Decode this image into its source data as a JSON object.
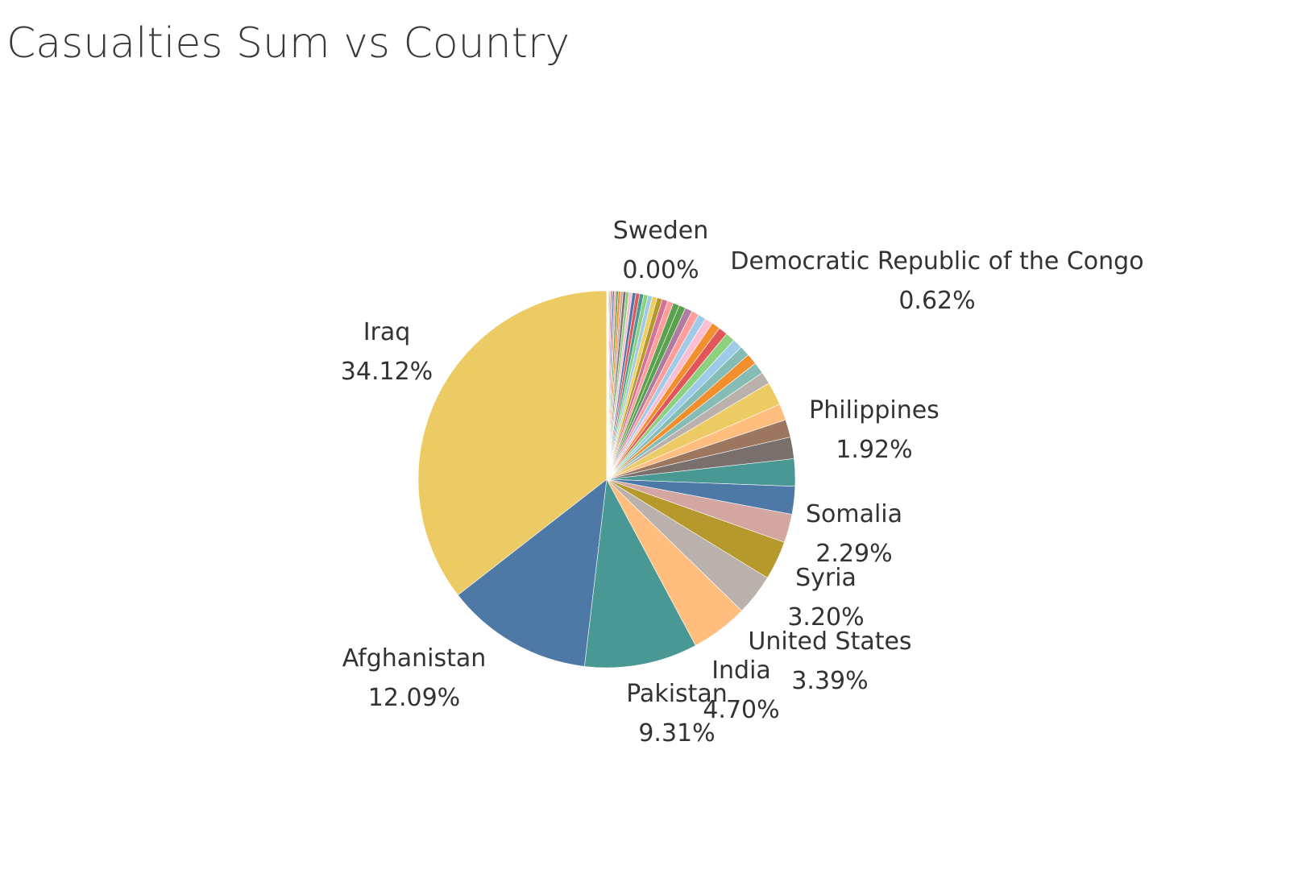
{
  "title": "Casualties Sum vs Country",
  "chart_data": {
    "type": "pie",
    "title": "Casualties Sum vs Country",
    "unit": "percent of total",
    "slices": [
      {
        "label": "Iraq",
        "value": 34.12,
        "color": "#EDCB64",
        "labeled": true
      },
      {
        "label": "Afghanistan",
        "value": 12.09,
        "color": "#4E79A7",
        "labeled": true
      },
      {
        "label": "Pakistan",
        "value": 9.31,
        "color": "#499894",
        "labeled": true
      },
      {
        "label": "India",
        "value": 4.7,
        "color": "#FFBE7D",
        "labeled": true
      },
      {
        "label": "United States",
        "value": 3.39,
        "color": "#BAB0AC",
        "labeled": true
      },
      {
        "label": "Syria",
        "value": 3.2,
        "color": "#B6992D",
        "labeled": true
      },
      {
        "label": "",
        "value": 2.35,
        "color": "#D4A6A1",
        "labeled": false
      },
      {
        "label": "Somalia",
        "value": 2.29,
        "color": "#4E79A7",
        "labeled": true
      },
      {
        "label": "",
        "value": 2.25,
        "color": "#499894",
        "labeled": false
      },
      {
        "label": "",
        "value": 1.78,
        "color": "#79706E",
        "labeled": false
      },
      {
        "label": "",
        "value": 1.45,
        "color": "#9D7660",
        "labeled": false
      },
      {
        "label": "",
        "value": 1.35,
        "color": "#FFBE7D",
        "labeled": false
      },
      {
        "label": "Philippines",
        "value": 1.92,
        "color": "#EDCB64",
        "labeled": true
      },
      {
        "label": "",
        "value": 1.0,
        "color": "#BAB0AC",
        "labeled": false
      },
      {
        "label": "",
        "value": 0.95,
        "color": "#86BCB6",
        "labeled": false
      },
      {
        "label": "",
        "value": 0.9,
        "color": "#F28E2B",
        "labeled": false
      },
      {
        "label": "",
        "value": 0.85,
        "color": "#86BCB6",
        "labeled": false
      },
      {
        "label": "",
        "value": 0.82,
        "color": "#A0CBE8",
        "labeled": false
      },
      {
        "label": "",
        "value": 0.78,
        "color": "#8CD17D",
        "labeled": false
      },
      {
        "label": "",
        "value": 0.74,
        "color": "#E15759",
        "labeled": false
      },
      {
        "label": "",
        "value": 0.7,
        "color": "#F28E2B",
        "labeled": false
      },
      {
        "label": "",
        "value": 0.66,
        "color": "#FABFD2",
        "labeled": false
      },
      {
        "label": "",
        "value": 0.64,
        "color": "#A0CBE8",
        "labeled": false
      },
      {
        "label": "Democratic Republic of the Congo",
        "value": 0.62,
        "color": "#FF9D9A",
        "labeled": true
      },
      {
        "label": "",
        "value": 0.58,
        "color": "#B07AA1",
        "labeled": false
      },
      {
        "label": "",
        "value": 0.55,
        "color": "#59A14F",
        "labeled": false
      },
      {
        "label": "",
        "value": 0.52,
        "color": "#59A14F",
        "labeled": false
      },
      {
        "label": "",
        "value": 0.49,
        "color": "#FF9D9A",
        "labeled": false
      },
      {
        "label": "",
        "value": 0.46,
        "color": "#D37295",
        "labeled": false
      },
      {
        "label": "",
        "value": 0.43,
        "color": "#B6992D",
        "labeled": false
      },
      {
        "label": "",
        "value": 0.4,
        "color": "#F1CE63",
        "labeled": false
      },
      {
        "label": "",
        "value": 0.37,
        "color": "#A0CBE8",
        "labeled": false
      },
      {
        "label": "",
        "value": 0.35,
        "color": "#8CD17D",
        "labeled": false
      },
      {
        "label": "",
        "value": 0.33,
        "color": "#499894",
        "labeled": false
      },
      {
        "label": "",
        "value": 0.31,
        "color": "#E15759",
        "labeled": false
      },
      {
        "label": "",
        "value": 0.29,
        "color": "#4E79A7",
        "labeled": false
      },
      {
        "label": "",
        "value": 0.27,
        "color": "#FABFD2",
        "labeled": false
      },
      {
        "label": "",
        "value": 0.25,
        "color": "#8CD17D",
        "labeled": false
      },
      {
        "label": "",
        "value": 0.23,
        "color": "#79706E",
        "labeled": false
      },
      {
        "label": "",
        "value": 0.21,
        "color": "#D4A6A1",
        "labeled": false
      },
      {
        "label": "",
        "value": 0.19,
        "color": "#F28E2B",
        "labeled": false
      },
      {
        "label": "",
        "value": 0.17,
        "color": "#59A14F",
        "labeled": false
      },
      {
        "label": "",
        "value": 0.15,
        "color": "#FF9D9A",
        "labeled": false
      },
      {
        "label": "",
        "value": 0.13,
        "color": "#4E79A7",
        "labeled": false
      },
      {
        "label": "",
        "value": 0.11,
        "color": "#B07AA1",
        "labeled": false
      },
      {
        "label": "",
        "value": 0.09,
        "color": "#E15759",
        "labeled": false
      },
      {
        "label": "",
        "value": 0.07,
        "color": "#9D7660",
        "labeled": false
      },
      {
        "label": "",
        "value": 0.06,
        "color": "#D37295",
        "labeled": false
      },
      {
        "label": "",
        "value": 0.05,
        "color": "#A0CBE8",
        "labeled": false
      },
      {
        "label": "",
        "value": 0.04,
        "color": "#BAB0AC",
        "labeled": false
      },
      {
        "label": "",
        "value": 0.03,
        "color": "#79706E",
        "labeled": false
      },
      {
        "label": "",
        "value": 0.02,
        "color": "#FF9D9A",
        "labeled": false
      },
      {
        "label": "Sweden",
        "value": 0.0,
        "color": "#BAB0AC",
        "labeled": true
      }
    ],
    "value_labels": [
      {
        "country": "Iraq",
        "text": "34.12%"
      },
      {
        "country": "Afghanistan",
        "text": "12.09%"
      },
      {
        "country": "Pakistan",
        "text": "9.31%"
      },
      {
        "country": "India",
        "text": "4.70%"
      },
      {
        "country": "United States",
        "text": "3.39%"
      },
      {
        "country": "Syria",
        "text": "3.20%"
      },
      {
        "country": "Somalia",
        "text": "2.29%"
      },
      {
        "country": "Philippines",
        "text": "1.92%"
      },
      {
        "country": "Democratic Republic of the Congo",
        "text": "0.62%"
      },
      {
        "country": "Sweden",
        "text": "0.00%"
      }
    ]
  }
}
